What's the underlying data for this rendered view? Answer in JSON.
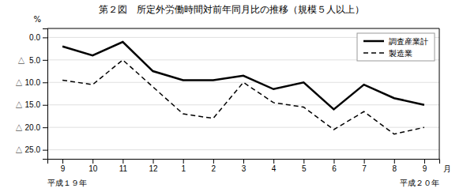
{
  "chart_data": {
    "type": "line",
    "title": "第２図　所定外労働時間対前年同月比の推移（規模５人以上）",
    "categories": [
      "9",
      "10",
      "11",
      "12",
      "1",
      "2",
      "3",
      "4",
      "5",
      "6",
      "7",
      "8",
      "9"
    ],
    "series": [
      {
        "name": "調査産業計",
        "color": "#000000",
        "line_style": "solid",
        "values": [
          2.0,
          4.0,
          1.0,
          7.5,
          9.5,
          9.5,
          8.5,
          11.5,
          10.0,
          16.0,
          10.5,
          13.5,
          15.0
        ]
      },
      {
        "name": "製造業",
        "color": "#000000",
        "line_style": "dashed",
        "values": [
          9.5,
          10.5,
          5.0,
          11.0,
          17.0,
          18.0,
          10.0,
          14.5,
          15.5,
          20.5,
          16.5,
          21.5,
          20.0
        ]
      }
    ],
    "ylim": [
      27,
      -2
    ],
    "yticks": [
      {
        "value": 0.0,
        "label": "0.0"
      },
      {
        "value": 5.0,
        "label": "△  5.0"
      },
      {
        "value": 10.0,
        "label": "△ 10.0"
      },
      {
        "value": 15.0,
        "label": "△ 15.0"
      },
      {
        "value": 20.0,
        "label": "△ 20.0"
      },
      {
        "value": 25.0,
        "label": "△ 25.0"
      }
    ],
    "y_label": "%",
    "x_label": "月",
    "annotations": [
      "平成１９年",
      "平成２０年"
    ],
    "grid": true,
    "legend": "upper right"
  }
}
